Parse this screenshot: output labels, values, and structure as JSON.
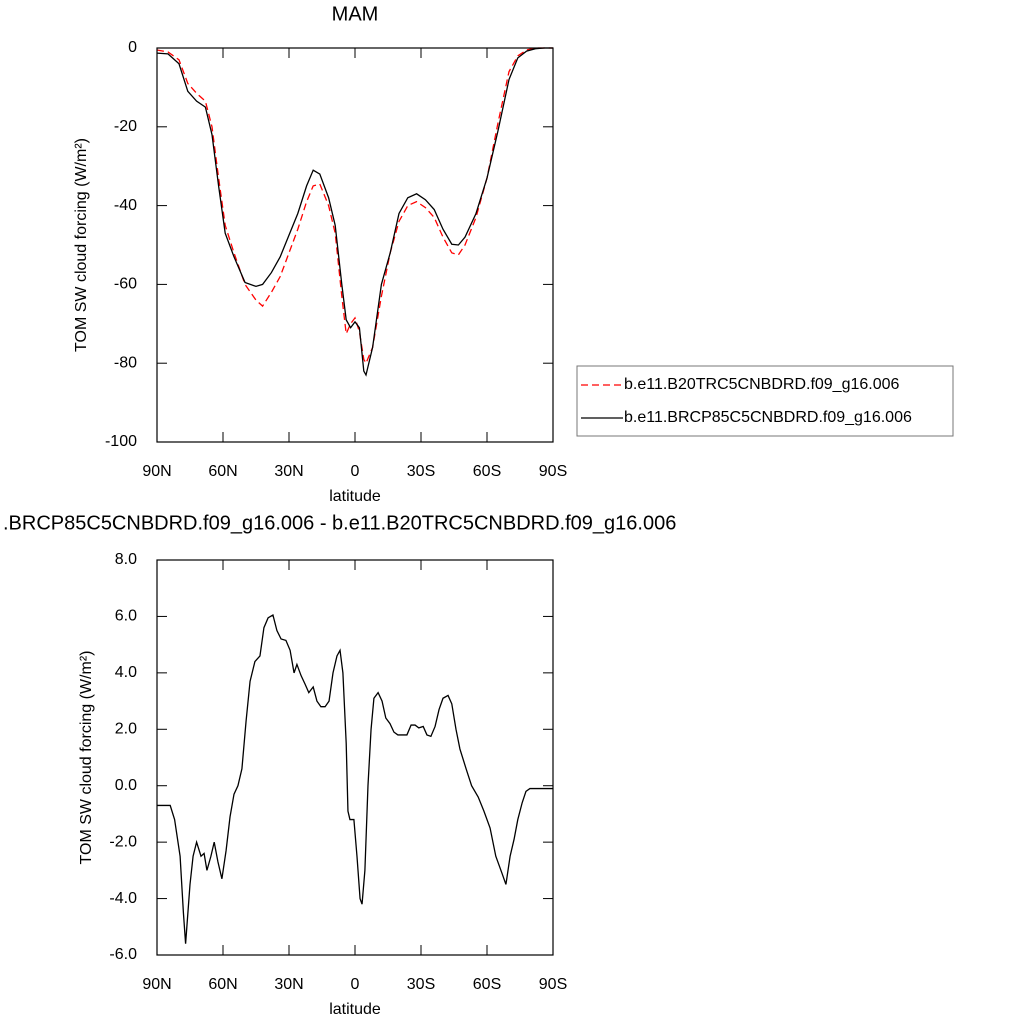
{
  "chart_data": [
    {
      "type": "line",
      "title": "MAM",
      "xlabel": "latitude",
      "ylabel": "TOM SW cloud forcing (W/m²)",
      "xlim": [
        90,
        -90
      ],
      "ylim": [
        -100,
        0
      ],
      "xticks": [
        {
          "value": 90,
          "label": "90N"
        },
        {
          "value": 60,
          "label": "60N"
        },
        {
          "value": 30,
          "label": "30N"
        },
        0,
        {
          "value": -30,
          "label": "30S"
        },
        {
          "value": -60,
          "label": "60S"
        },
        {
          "value": -90,
          "label": "90S"
        }
      ],
      "yticks": [
        0,
        -20,
        -40,
        -60,
        -80,
        -100
      ],
      "legend": "right",
      "x": [
        90,
        85,
        80,
        76,
        72,
        68,
        65,
        62,
        59,
        55,
        50,
        45,
        42,
        38,
        34,
        30,
        26,
        22,
        19,
        16,
        12,
        9,
        6,
        4,
        2,
        0,
        -2,
        -4,
        -5,
        -8,
        -12,
        -16,
        -20,
        -24,
        -28,
        -32,
        -36,
        -40,
        -44,
        -47,
        -50,
        -55,
        -60,
        -65,
        -70,
        -74,
        -78,
        -82,
        -86,
        -90
      ],
      "series": [
        {
          "name": "b.e11.B20TRC5CNBDRD.f09_g16.006",
          "color": "#ff0000",
          "dash": true,
          "values": [
            -0.5,
            -1,
            -3,
            -9,
            -11.5,
            -13.5,
            -20,
            -33,
            -45,
            -52,
            -60,
            -64,
            -65.5,
            -62,
            -58,
            -52,
            -46,
            -39,
            -35,
            -34.5,
            -40,
            -47,
            -63,
            -72.5,
            -70,
            -68.5,
            -72,
            -79,
            -80,
            -76,
            -63,
            -52,
            -44,
            -40,
            -39,
            -40.5,
            -43,
            -48,
            -52,
            -52.5,
            -50,
            -43,
            -33,
            -19,
            -6,
            -2,
            -0.5,
            0,
            0,
            0
          ]
        },
        {
          "name": "b.e11.BRCP85C5CNBDRD.f09_g16.006",
          "color": "#000000",
          "dash": false,
          "values": [
            -1.3,
            -1.5,
            -4,
            -11,
            -13.5,
            -15,
            -22,
            -35,
            -47,
            -53,
            -59.5,
            -60.5,
            -60,
            -57,
            -53,
            -47.5,
            -42,
            -35,
            -31,
            -32,
            -38,
            -45,
            -60,
            -69,
            -71,
            -69.5,
            -71,
            -82,
            -83,
            -76,
            -60,
            -52,
            -42,
            -38,
            -37,
            -38.5,
            -41,
            -46,
            -49.8,
            -50,
            -48,
            -42,
            -33,
            -21,
            -8,
            -2.5,
            -0.8,
            -0.2,
            0,
            0
          ]
        }
      ]
    },
    {
      "type": "line",
      "title": ".BRCP85C5CNBDRD.f09_g16.006 - b.e11.B20TRC5CNBDRD.f09_g16.006",
      "xlabel": "latitude",
      "ylabel": "TOM SW cloud forcing (W/m²)",
      "xlim": [
        90,
        -90
      ],
      "ylim": [
        -6,
        8
      ],
      "xticks": [
        {
          "value": 90,
          "label": "90N"
        },
        {
          "value": 60,
          "label": "60N"
        },
        {
          "value": 30,
          "label": "30N"
        },
        0,
        {
          "value": -30,
          "label": "30S"
        },
        {
          "value": -60,
          "label": "60S"
        },
        {
          "value": -90,
          "label": "90S"
        }
      ],
      "yticks": [
        {
          "value": 8,
          "label": "8.0"
        },
        {
          "value": 6,
          "label": "6.0"
        },
        {
          "value": 4,
          "label": "4.0"
        },
        {
          "value": 2,
          "label": "2.0"
        },
        {
          "value": 0,
          "label": "0.0"
        },
        {
          "value": -2,
          "label": "-2.0"
        },
        {
          "value": -4,
          "label": "-4.0"
        },
        {
          "value": -6,
          "label": "-6.0"
        }
      ],
      "x": [
        90,
        84,
        82,
        79.5,
        78,
        77,
        75,
        73.6,
        72,
        70,
        68.6,
        67.3,
        65.5,
        64,
        62.3,
        60.5,
        58.6,
        56.8,
        55,
        53.2,
        51.4,
        49.5,
        47.7,
        45.5,
        43.2,
        41.4,
        39.5,
        37.3,
        35.5,
        33.6,
        31.4,
        29.5,
        27.7,
        26.4,
        24.5,
        22.7,
        21,
        19,
        17.3,
        15.5,
        13.6,
        11.8,
        10,
        8.2,
        6.8,
        5.5,
        4,
        3.2,
        2.3,
        0.5,
        -0.9,
        -2.3,
        -3.2,
        -4.5,
        -5.9,
        -7.3,
        -8.6,
        -10.5,
        -12.3,
        -14,
        -15.9,
        -17.7,
        -19.5,
        -21.8,
        -23.6,
        -25.5,
        -27.3,
        -29,
        -31,
        -32.7,
        -34.5,
        -36.4,
        -38.2,
        -40,
        -42.3,
        -44,
        -45.9,
        -47.7,
        -50.5,
        -53,
        -56,
        -58.6,
        -61.4,
        -64,
        -66.8,
        -68.6,
        -70.5,
        -72.3,
        -74,
        -76,
        -77.7,
        -79.5,
        -84,
        -90
      ],
      "series": [
        {
          "color": "#000000",
          "dash": false,
          "values": [
            -0.7,
            -0.7,
            -1.2,
            -2.5,
            -4.5,
            -5.6,
            -3.5,
            -2.5,
            -2.0,
            -2.5,
            -2.4,
            -3.0,
            -2.5,
            -2.0,
            -2.7,
            -3.3,
            -2.3,
            -1.1,
            -0.3,
            0.0,
            0.6,
            2.3,
            3.7,
            4.4,
            4.6,
            5.6,
            5.95,
            6.05,
            5.5,
            5.2,
            5.15,
            4.8,
            4.0,
            4.3,
            3.9,
            3.6,
            3.3,
            3.5,
            3.0,
            2.8,
            2.8,
            3.0,
            4.0,
            4.6,
            4.8,
            4.0,
            1.5,
            -0.9,
            -1.2,
            -1.2,
            -2.5,
            -4.0,
            -4.2,
            -3.0,
            0.0,
            2.0,
            3.1,
            3.3,
            3.0,
            2.4,
            2.2,
            1.9,
            1.8,
            1.8,
            1.8,
            2.15,
            2.15,
            2.05,
            2.1,
            1.8,
            1.75,
            2.1,
            2.7,
            3.1,
            3.2,
            2.9,
            2.0,
            1.3,
            0.6,
            0.0,
            -0.4,
            -0.9,
            -1.5,
            -2.5,
            -3.1,
            -3.5,
            -2.5,
            -1.9,
            -1.2,
            -0.6,
            -0.2,
            -0.1,
            -0.1,
            -0.1
          ]
        }
      ]
    }
  ]
}
